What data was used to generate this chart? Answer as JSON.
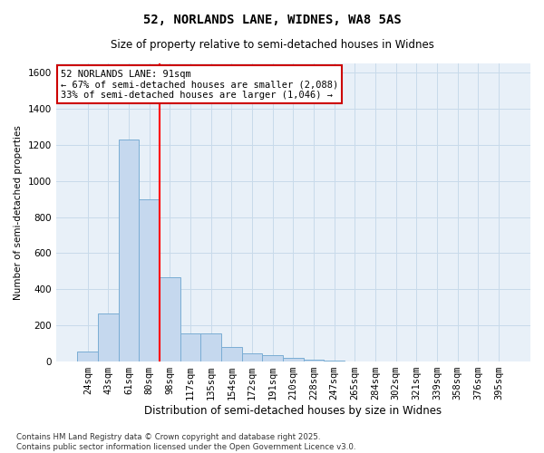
{
  "title": "52, NORLANDS LANE, WIDNES, WA8 5AS",
  "subtitle": "Size of property relative to semi-detached houses in Widnes",
  "xlabel": "Distribution of semi-detached houses by size in Widnes",
  "ylabel": "Number of semi-detached properties",
  "footer": "Contains HM Land Registry data © Crown copyright and database right 2025.\nContains public sector information licensed under the Open Government Licence v3.0.",
  "bin_labels": [
    "24sqm",
    "43sqm",
    "61sqm",
    "80sqm",
    "98sqm",
    "117sqm",
    "135sqm",
    "154sqm",
    "172sqm",
    "191sqm",
    "210sqm",
    "228sqm",
    "247sqm",
    "265sqm",
    "284sqm",
    "302sqm",
    "321sqm",
    "339sqm",
    "358sqm",
    "376sqm",
    "395sqm"
  ],
  "values": [
    55,
    265,
    1230,
    900,
    465,
    155,
    155,
    80,
    45,
    35,
    20,
    8,
    4,
    2,
    1,
    1,
    0,
    0,
    0,
    0,
    0
  ],
  "bar_color": "#c5d8ee",
  "bar_edge_color": "#7aadd4",
  "red_line_bin_index": 3.5,
  "red_line_label": "52 NORLANDS LANE: 91sqm",
  "pct_smaller": "67% of semi-detached houses are smaller (2,088)",
  "pct_larger": "33% of semi-detached houses are larger (1,046)",
  "annotation_box_color": "#ffffff",
  "annotation_box_edge": "#cc0000",
  "ylim": [
    0,
    1650
  ],
  "yticks": [
    0,
    200,
    400,
    600,
    800,
    1000,
    1200,
    1400,
    1600
  ],
  "grid_color": "#c8daea",
  "bg_color": "#e8f0f8",
  "title_fontsize": 10,
  "subtitle_fontsize": 8.5
}
